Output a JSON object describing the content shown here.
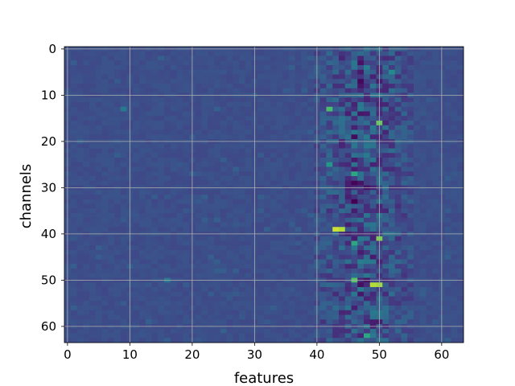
{
  "chart_data": {
    "type": "heatmap",
    "title": "",
    "xlabel": "features",
    "ylabel": "channels",
    "x_range": [
      0,
      63
    ],
    "y_range": [
      0,
      63
    ],
    "y_inverted": true,
    "x_ticks": [
      0,
      10,
      20,
      30,
      40,
      50,
      60
    ],
    "y_ticks": [
      0,
      10,
      20,
      30,
      40,
      50,
      60
    ],
    "grid": true,
    "colormap": "viridis",
    "rows": 64,
    "cols": 64,
    "background_level": 0.3,
    "high_variance_columns": [
      40,
      55
    ],
    "hotspots": [
      {
        "row": 13,
        "col": 42,
        "level": 0.78
      },
      {
        "row": 16,
        "col": 50,
        "level": 0.82
      },
      {
        "row": 5,
        "col": 52,
        "level": 0.6
      },
      {
        "row": 7,
        "col": 47,
        "level": 0.03
      },
      {
        "row": 25,
        "col": 42,
        "level": 0.65
      },
      {
        "row": 27,
        "col": 46,
        "level": 0.7
      },
      {
        "row": 29,
        "col": 46,
        "level": 0.02
      },
      {
        "row": 33,
        "col": 46,
        "level": 0.0
      },
      {
        "row": 39,
        "col": 43,
        "level": 0.95
      },
      {
        "row": 39,
        "col": 44,
        "level": 0.92
      },
      {
        "row": 41,
        "col": 50,
        "level": 0.85
      },
      {
        "row": 42,
        "col": 46,
        "level": 0.7
      },
      {
        "row": 50,
        "col": 46,
        "level": 0.8
      },
      {
        "row": 51,
        "col": 49,
        "level": 0.92
      },
      {
        "row": 51,
        "col": 50,
        "level": 0.9
      },
      {
        "row": 51,
        "col": 47,
        "level": 0.05
      },
      {
        "row": 62,
        "col": 48,
        "level": 0.7
      },
      {
        "row": 19,
        "col": 46,
        "level": 0.04
      },
      {
        "row": 13,
        "col": 9,
        "level": 0.5
      },
      {
        "row": 50,
        "col": 16,
        "level": 0.5
      }
    ]
  }
}
